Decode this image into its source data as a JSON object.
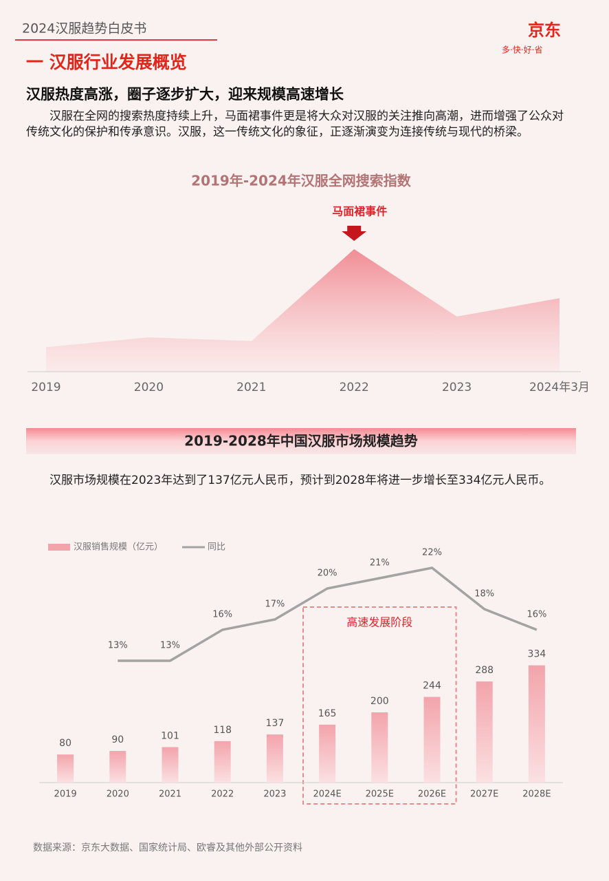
{
  "header": {
    "title": "2024汉服趋势白皮书",
    "logo": "京东",
    "slogan": "多·快·好·省"
  },
  "section": {
    "title": "一 汉服行业发展概览",
    "heading": "汉服热度高涨，圈子逐步扩大，迎来规模高速增长",
    "paragraph": "汉服在全网的搜索热度持续上升，马面裙事件更是将大众对汉服的关注推向高潮，进而增强了公众对传统文化的保护和传承意识。汉服，这一传统文化的象征，正逐渐演变为连接传统与现代的桥梁。",
    "paragraph2": "汉服市场规模在2023年达到了137亿元人民币，预计到2028年将进一步增长至334亿元人民币。",
    "source": "数据来源：京东大数据、国家统计局、欧睿及其他外部公开资料"
  },
  "chart_data": [
    {
      "type": "area",
      "title": "2019年-2024年汉服全网搜索指数",
      "categories": [
        "2019",
        "2020",
        "2021",
        "2022",
        "2023",
        "2024年3月"
      ],
      "values": [
        20,
        28,
        25,
        100,
        45,
        60
      ],
      "ylim": [
        0,
        100
      ],
      "color": "#f08c94",
      "annotation": {
        "text": "马面裙事件",
        "category": "2022"
      }
    },
    {
      "type": "bar-line",
      "title": "2019-2028年中国汉服市场规模趋势",
      "categories": [
        "2019",
        "2020",
        "2021",
        "2022",
        "2023",
        "2024E",
        "2025E",
        "2026E",
        "2027E",
        "2028E"
      ],
      "series": [
        {
          "name": "汉服销售规模（亿元）",
          "color": "#f2a4ab",
          "values": [
            80,
            90,
            101,
            118,
            137,
            165,
            200,
            244,
            288,
            334
          ]
        },
        {
          "name": "同比",
          "color": "#a3a3a3",
          "axis": "y2",
          "values": [
            null,
            13,
            13,
            16,
            17,
            20,
            21,
            22,
            18,
            16
          ],
          "value_labels": [
            null,
            "13%",
            "13%",
            "16%",
            "17%",
            "20%",
            "21%",
            "22%",
            "18%",
            "16%"
          ]
        }
      ],
      "ylim": [
        0,
        400
      ],
      "y2lim": [
        0,
        24
      ],
      "annotation": {
        "text": "高速发展阶段",
        "categories": [
          "2024E",
          "2026E"
        ]
      }
    }
  ]
}
